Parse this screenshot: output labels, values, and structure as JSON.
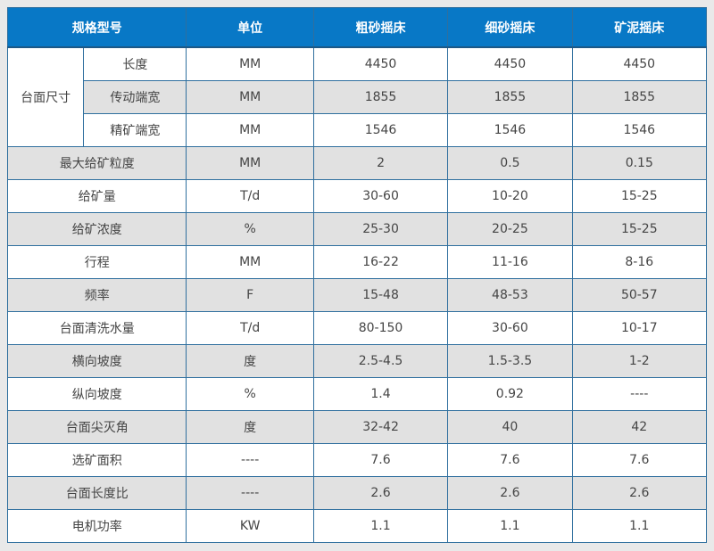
{
  "table": {
    "header": {
      "spec_model": "规格型号",
      "unit": "单位",
      "coarse": "粗砂摇床",
      "fine": "细砂摇床",
      "slime": "矿泥摇床"
    },
    "dim_group_label": "台面尺寸",
    "dim_rows": [
      {
        "label": "长度",
        "unit": "MM",
        "coarse": "4450",
        "fine": "4450",
        "slime": "4450"
      },
      {
        "label": "传动端宽",
        "unit": "MM",
        "coarse": "1855",
        "fine": "1855",
        "slime": "1855"
      },
      {
        "label": "精矿端宽",
        "unit": "MM",
        "coarse": "1546",
        "fine": "1546",
        "slime": "1546"
      }
    ],
    "rows": [
      {
        "label": "最大给矿粒度",
        "unit": "MM",
        "coarse": "2",
        "fine": "0.5",
        "slime": "0.15"
      },
      {
        "label": "给矿量",
        "unit": "T/d",
        "coarse": "30-60",
        "fine": "10-20",
        "slime": "15-25"
      },
      {
        "label": "给矿浓度",
        "unit": "%",
        "coarse": "25-30",
        "fine": "20-25",
        "slime": "15-25"
      },
      {
        "label": "行程",
        "unit": "MM",
        "coarse": "16-22",
        "fine": "11-16",
        "slime": "8-16"
      },
      {
        "label": "频率",
        "unit": "F",
        "coarse": "15-48",
        "fine": "48-53",
        "slime": "50-57"
      },
      {
        "label": "台面清洗水量",
        "unit": "T/d",
        "coarse": "80-150",
        "fine": "30-60",
        "slime": "10-17"
      },
      {
        "label": "横向坡度",
        "unit": "度",
        "coarse": "2.5-4.5",
        "fine": "1.5-3.5",
        "slime": "1-2"
      },
      {
        "label": "纵向坡度",
        "unit": "%",
        "coarse": "1.4",
        "fine": "0.92",
        "slime": "----"
      },
      {
        "label": "台面尖灭角",
        "unit": "度",
        "coarse": "32-42",
        "fine": "40",
        "slime": "42"
      },
      {
        "label": "选矿面积",
        "unit": "----",
        "coarse": "7.6",
        "fine": "7.6",
        "slime": "7.6"
      },
      {
        "label": "台面长度比",
        "unit": "----",
        "coarse": "2.6",
        "fine": "2.6",
        "slime": "2.6"
      },
      {
        "label": "电机功率",
        "unit": "KW",
        "coarse": "1.1",
        "fine": "1.1",
        "slime": "1.1"
      }
    ],
    "colors": {
      "header_bg": "#0878c6",
      "header_text": "#ffffff",
      "border": "#2f6f9e",
      "stripe_bg": "#e1e1e1",
      "page_bg": "#e9e9e9",
      "body_text": "#454545"
    }
  }
}
